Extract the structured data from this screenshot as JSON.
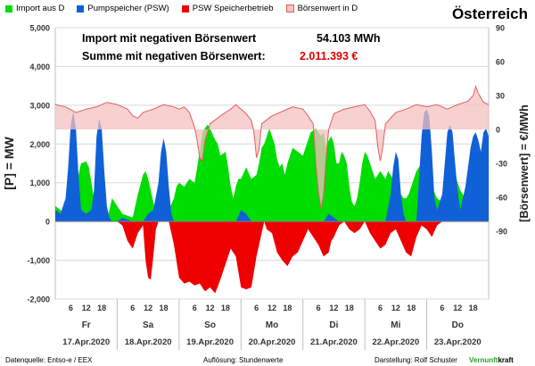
{
  "header": {
    "country": "Österreich"
  },
  "annotations": {
    "line1_label": "Import mit negativen Börsenwert",
    "line1_value": "54.103 MWh",
    "line2_label": "Summe mit negativen Börsenwert:",
    "line2_value": "2.011.393 €",
    "line2_value_color": "#e00000"
  },
  "footer": {
    "source": "Datenquelle: Entso-e   / EEX",
    "resolution": "Auflösung: Stundenwerte",
    "author": "Darstellung:  Rolf Schuster",
    "brand_part1": "Vernunft",
    "brand_part2": "kraft"
  },
  "chart_data": {
    "type": "area",
    "ylabel": "[P]  = MW",
    "y2label": "[Börsenwert]  = €/MWh",
    "ylim": [
      -2000,
      5000
    ],
    "y2lim": [
      -150,
      90
    ],
    "yticks": [
      "5,000",
      "4,000",
      "3,000",
      "2,000",
      "1,000",
      "0",
      "-1,000",
      "-2,000"
    ],
    "y2ticks": [
      "90",
      "60",
      "30",
      "0",
      "-30",
      "-60",
      "-90"
    ],
    "colors": {
      "import": "#00dd00",
      "psw": "#1060d8",
      "psw_storage": "#ee0000",
      "price_fill": "#f4c0c0",
      "price_line": "#e06060"
    },
    "series": [
      {
        "name": "Import aus D"
      },
      {
        "name": "Pumpspeicher  (PSW)"
      },
      {
        "name": "PSW Speicherbetrieb"
      },
      {
        "name": "Börsenwert in D"
      }
    ],
    "days": [
      {
        "day": "Fr",
        "date": "17.Apr.2020"
      },
      {
        "day": "Sa",
        "date": "18.Apr.2020"
      },
      {
        "day": "So",
        "date": "19.Apr.2020"
      },
      {
        "day": "Mo",
        "date": "20.Apr.2020"
      },
      {
        "day": "Di",
        "date": "21.Apr.2020"
      },
      {
        "day": "Mi",
        "date": "22.Apr.2020"
      },
      {
        "day": "Do",
        "date": "23.Apr.2020"
      }
    ],
    "hour_ticks": [
      "6",
      "12",
      "18"
    ],
    "import_mw": [
      [
        0,
        400
      ],
      [
        2,
        300
      ],
      [
        4,
        150
      ],
      [
        6,
        200
      ],
      [
        8,
        600
      ],
      [
        9,
        1200
      ],
      [
        10,
        1500
      ],
      [
        12,
        1550
      ],
      [
        13,
        1400
      ],
      [
        14,
        1000
      ],
      [
        15,
        600
      ],
      [
        16,
        300
      ],
      [
        17,
        100
      ],
      [
        18,
        0
      ],
      [
        20,
        0
      ],
      [
        21,
        300
      ],
      [
        22,
        600
      ],
      [
        24,
        400
      ],
      [
        26,
        200
      ],
      [
        28,
        150
      ],
      [
        30,
        100
      ],
      [
        32,
        700
      ],
      [
        34,
        1200
      ],
      [
        35,
        1300
      ],
      [
        36,
        1100
      ],
      [
        37,
        800
      ],
      [
        38,
        500
      ],
      [
        39,
        200
      ],
      [
        40,
        100
      ],
      [
        42,
        200
      ],
      [
        44,
        300
      ],
      [
        46,
        600
      ],
      [
        47,
        900
      ],
      [
        48,
        1000
      ],
      [
        50,
        900
      ],
      [
        52,
        1100
      ],
      [
        54,
        1000
      ],
      [
        56,
        1800
      ],
      [
        57,
        2300
      ],
      [
        58,
        2400
      ],
      [
        59,
        2500
      ],
      [
        60,
        2400
      ],
      [
        62,
        2100
      ],
      [
        63,
        2000
      ],
      [
        64,
        1700
      ],
      [
        66,
        1800
      ],
      [
        67,
        1400
      ],
      [
        68,
        900
      ],
      [
        69,
        600
      ],
      [
        70,
        900
      ],
      [
        71,
        1100
      ],
      [
        72,
        1100
      ],
      [
        74,
        1400
      ],
      [
        76,
        1100
      ],
      [
        78,
        1200
      ],
      [
        79,
        1500
      ],
      [
        80,
        1900
      ],
      [
        81,
        2000
      ],
      [
        82,
        2200
      ],
      [
        83,
        2400
      ],
      [
        84,
        2200
      ],
      [
        85,
        2000
      ],
      [
        86,
        1600
      ],
      [
        87,
        1400
      ],
      [
        88,
        1500
      ],
      [
        89,
        1200
      ],
      [
        90,
        1500
      ],
      [
        92,
        1900
      ],
      [
        94,
        1800
      ],
      [
        96,
        1700
      ],
      [
        97,
        1900
      ],
      [
        98,
        2100
      ],
      [
        99,
        2300
      ],
      [
        100,
        2350
      ],
      [
        101,
        2400
      ],
      [
        102,
        2300
      ],
      [
        103,
        2200
      ],
      [
        104,
        2300
      ],
      [
        105,
        1900
      ],
      [
        106,
        2100
      ],
      [
        107,
        2200
      ],
      [
        108,
        2000
      ],
      [
        109,
        1500
      ],
      [
        110,
        1500
      ],
      [
        111,
        1800
      ],
      [
        112,
        1700
      ],
      [
        113,
        1500
      ],
      [
        114,
        900
      ],
      [
        115,
        500
      ],
      [
        116,
        400
      ],
      [
        117,
        600
      ],
      [
        118,
        1000
      ],
      [
        119,
        1500
      ],
      [
        120,
        1800
      ],
      [
        121,
        1700
      ],
      [
        122,
        1500
      ],
      [
        123,
        1300
      ],
      [
        124,
        1100
      ],
      [
        125,
        1200
      ],
      [
        126,
        1300
      ],
      [
        127,
        1200
      ],
      [
        128,
        1100
      ],
      [
        129,
        1300
      ],
      [
        130,
        1200
      ],
      [
        131,
        1100
      ],
      [
        132,
        900
      ],
      [
        133,
        800
      ],
      [
        134,
        700
      ],
      [
        135,
        600
      ],
      [
        136,
        600
      ],
      [
        137,
        700
      ],
      [
        138,
        900
      ],
      [
        139,
        1100
      ],
      [
        140,
        1300
      ],
      [
        142,
        1500
      ],
      [
        143,
        1400
      ],
      [
        144,
        1300
      ],
      [
        146,
        900
      ],
      [
        148,
        600
      ],
      [
        150,
        500
      ],
      [
        152,
        800
      ],
      [
        153,
        1100
      ],
      [
        154,
        1300
      ],
      [
        155,
        1200
      ],
      [
        156,
        1000
      ],
      [
        157,
        800
      ],
      [
        158,
        700
      ],
      [
        159,
        600
      ],
      [
        160,
        500
      ],
      [
        162,
        700
      ],
      [
        164,
        1200
      ],
      [
        165,
        1500
      ],
      [
        166,
        1800
      ],
      [
        167,
        1600
      ],
      [
        168,
        1200
      ]
    ],
    "psw_mw": [
      [
        0,
        300
      ],
      [
        2,
        200
      ],
      [
        4,
        600
      ],
      [
        5,
        1400
      ],
      [
        6,
        2500
      ],
      [
        7,
        2850
      ],
      [
        8,
        2400
      ],
      [
        9,
        1200
      ],
      [
        10,
        300
      ],
      [
        12,
        200
      ],
      [
        14,
        300
      ],
      [
        15,
        800
      ],
      [
        16,
        2200
      ],
      [
        17,
        2650
      ],
      [
        18,
        2400
      ],
      [
        19,
        1300
      ],
      [
        20,
        400
      ],
      [
        21,
        100
      ],
      [
        22,
        0
      ],
      [
        24,
        0
      ],
      [
        26,
        100
      ],
      [
        28,
        50
      ],
      [
        30,
        0
      ],
      [
        34,
        0
      ],
      [
        36,
        200
      ],
      [
        38,
        300
      ],
      [
        40,
        1000
      ],
      [
        41,
        1800
      ],
      [
        42,
        2150
      ],
      [
        43,
        1800
      ],
      [
        44,
        900
      ],
      [
        45,
        200
      ],
      [
        46,
        0
      ],
      [
        70,
        0
      ],
      [
        72,
        300
      ],
      [
        74,
        200
      ],
      [
        76,
        0
      ],
      [
        104,
        0
      ],
      [
        106,
        200
      ],
      [
        108,
        100
      ],
      [
        110,
        0
      ],
      [
        128,
        0
      ],
      [
        130,
        700
      ],
      [
        131,
        1400
      ],
      [
        132,
        1800
      ],
      [
        133,
        1600
      ],
      [
        134,
        700
      ],
      [
        135,
        200
      ],
      [
        136,
        0
      ],
      [
        140,
        0
      ],
      [
        142,
        2200
      ],
      [
        143,
        2800
      ],
      [
        144,
        2900
      ],
      [
        145,
        2700
      ],
      [
        146,
        1800
      ],
      [
        147,
        600
      ],
      [
        148,
        300
      ],
      [
        150,
        700
      ],
      [
        152,
        2300
      ],
      [
        153,
        2500
      ],
      [
        154,
        2300
      ],
      [
        155,
        1500
      ],
      [
        156,
        800
      ],
      [
        157,
        300
      ],
      [
        158,
        600
      ],
      [
        159,
        900
      ],
      [
        160,
        1400
      ],
      [
        161,
        1900
      ],
      [
        162,
        2200
      ],
      [
        163,
        2300
      ],
      [
        164,
        2100
      ],
      [
        165,
        1800
      ],
      [
        166,
        2300
      ],
      [
        167,
        2400
      ],
      [
        168,
        2200
      ]
    ],
    "storage_mw": [
      [
        0,
        0
      ],
      [
        24,
        0
      ],
      [
        26,
        -100
      ],
      [
        28,
        -500
      ],
      [
        30,
        -700
      ],
      [
        32,
        -300
      ],
      [
        34,
        -100
      ],
      [
        35,
        -1000
      ],
      [
        36,
        -1450
      ],
      [
        37,
        -1500
      ],
      [
        38,
        -900
      ],
      [
        39,
        -200
      ],
      [
        40,
        0
      ],
      [
        44,
        0
      ],
      [
        46,
        -600
      ],
      [
        48,
        -1450
      ],
      [
        50,
        -1600
      ],
      [
        52,
        -1550
      ],
      [
        54,
        -1650
      ],
      [
        56,
        -1600
      ],
      [
        58,
        -1800
      ],
      [
        60,
        -1700
      ],
      [
        62,
        -1850
      ],
      [
        64,
        -1500
      ],
      [
        66,
        -1100
      ],
      [
        68,
        -700
      ],
      [
        70,
        -900
      ],
      [
        72,
        -1700
      ],
      [
        74,
        -1750
      ],
      [
        76,
        -1700
      ],
      [
        78,
        -900
      ],
      [
        80,
        -300
      ],
      [
        81,
        0
      ],
      [
        82,
        -200
      ],
      [
        84,
        -300
      ],
      [
        86,
        -800
      ],
      [
        88,
        -1000
      ],
      [
        90,
        -1150
      ],
      [
        92,
        -900
      ],
      [
        94,
        -800
      ],
      [
        96,
        -500
      ],
      [
        98,
        -200
      ],
      [
        100,
        -400
      ],
      [
        102,
        -600
      ],
      [
        104,
        -900
      ],
      [
        106,
        -800
      ],
      [
        107,
        -500
      ],
      [
        108,
        -400
      ],
      [
        110,
        -100
      ],
      [
        112,
        0
      ],
      [
        114,
        -200
      ],
      [
        116,
        -300
      ],
      [
        118,
        -200
      ],
      [
        120,
        0
      ],
      [
        122,
        -300
      ],
      [
        124,
        -500
      ],
      [
        126,
        -700
      ],
      [
        128,
        -600
      ],
      [
        130,
        -300
      ],
      [
        132,
        -200
      ],
      [
        134,
        -500
      ],
      [
        136,
        -800
      ],
      [
        138,
        -900
      ],
      [
        140,
        -400
      ],
      [
        142,
        -100
      ],
      [
        144,
        -200
      ],
      [
        146,
        -400
      ],
      [
        148,
        -100
      ],
      [
        150,
        0
      ],
      [
        168,
        0
      ]
    ],
    "price_eur": [
      [
        0,
        22
      ],
      [
        4,
        20
      ],
      [
        8,
        15
      ],
      [
        12,
        18
      ],
      [
        16,
        20
      ],
      [
        20,
        24
      ],
      [
        24,
        22
      ],
      [
        28,
        18
      ],
      [
        30,
        12
      ],
      [
        32,
        10
      ],
      [
        34,
        15
      ],
      [
        38,
        18
      ],
      [
        42,
        22
      ],
      [
        46,
        20
      ],
      [
        48,
        18
      ],
      [
        50,
        20
      ],
      [
        52,
        15
      ],
      [
        54,
        2
      ],
      [
        55,
        -10
      ],
      [
        56,
        -25
      ],
      [
        57,
        -28
      ],
      [
        58,
        -10
      ],
      [
        60,
        5
      ],
      [
        64,
        12
      ],
      [
        68,
        18
      ],
      [
        70,
        22
      ],
      [
        72,
        18
      ],
      [
        74,
        14
      ],
      [
        76,
        8
      ],
      [
        77,
        -2
      ],
      [
        78,
        -25
      ],
      [
        79,
        -18
      ],
      [
        80,
        5
      ],
      [
        84,
        12
      ],
      [
        88,
        16
      ],
      [
        92,
        20
      ],
      [
        96,
        18
      ],
      [
        98,
        12
      ],
      [
        100,
        5
      ],
      [
        101,
        -30
      ],
      [
        102,
        -55
      ],
      [
        103,
        -70
      ],
      [
        104,
        -58
      ],
      [
        105,
        -25
      ],
      [
        106,
        0
      ],
      [
        108,
        14
      ],
      [
        112,
        18
      ],
      [
        116,
        20
      ],
      [
        120,
        22
      ],
      [
        122,
        16
      ],
      [
        124,
        8
      ],
      [
        125,
        -15
      ],
      [
        126,
        -28
      ],
      [
        127,
        -15
      ],
      [
        128,
        5
      ],
      [
        132,
        15
      ],
      [
        136,
        18
      ],
      [
        140,
        22
      ],
      [
        144,
        20
      ],
      [
        148,
        22
      ],
      [
        152,
        18
      ],
      [
        156,
        22
      ],
      [
        160,
        25
      ],
      [
        162,
        30
      ],
      [
        163,
        38
      ],
      [
        164,
        32
      ],
      [
        166,
        24
      ],
      [
        168,
        22
      ]
    ]
  }
}
